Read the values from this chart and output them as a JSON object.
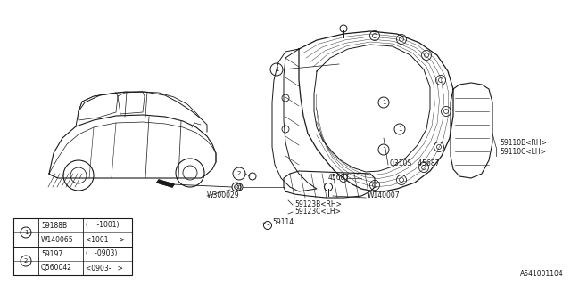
{
  "bg_color": "#ffffff",
  "line_color": "#1a1a1a",
  "fig_width": 6.4,
  "fig_height": 3.2,
  "dpi": 100,
  "watermark": "A541001104",
  "table_rows": [
    [
      "59188B",
      "(    -1001)"
    ],
    [
      "W140065",
      "<1001-    >"
    ],
    [
      "59197",
      "(   -0903)"
    ],
    [
      "Q560042",
      "<0903-   >"
    ]
  ],
  "label_W300029": "W300029",
  "label_0310S": "0310S   45687",
  "label_45687": "45687",
  "label_W140007": "W140007",
  "label_59123B": "59123B<RH>",
  "label_59123C": "59123C<LH>",
  "label_59114": "59114",
  "label_59110B": "59110B<RH>",
  "label_59110C": "59110C<LH>"
}
